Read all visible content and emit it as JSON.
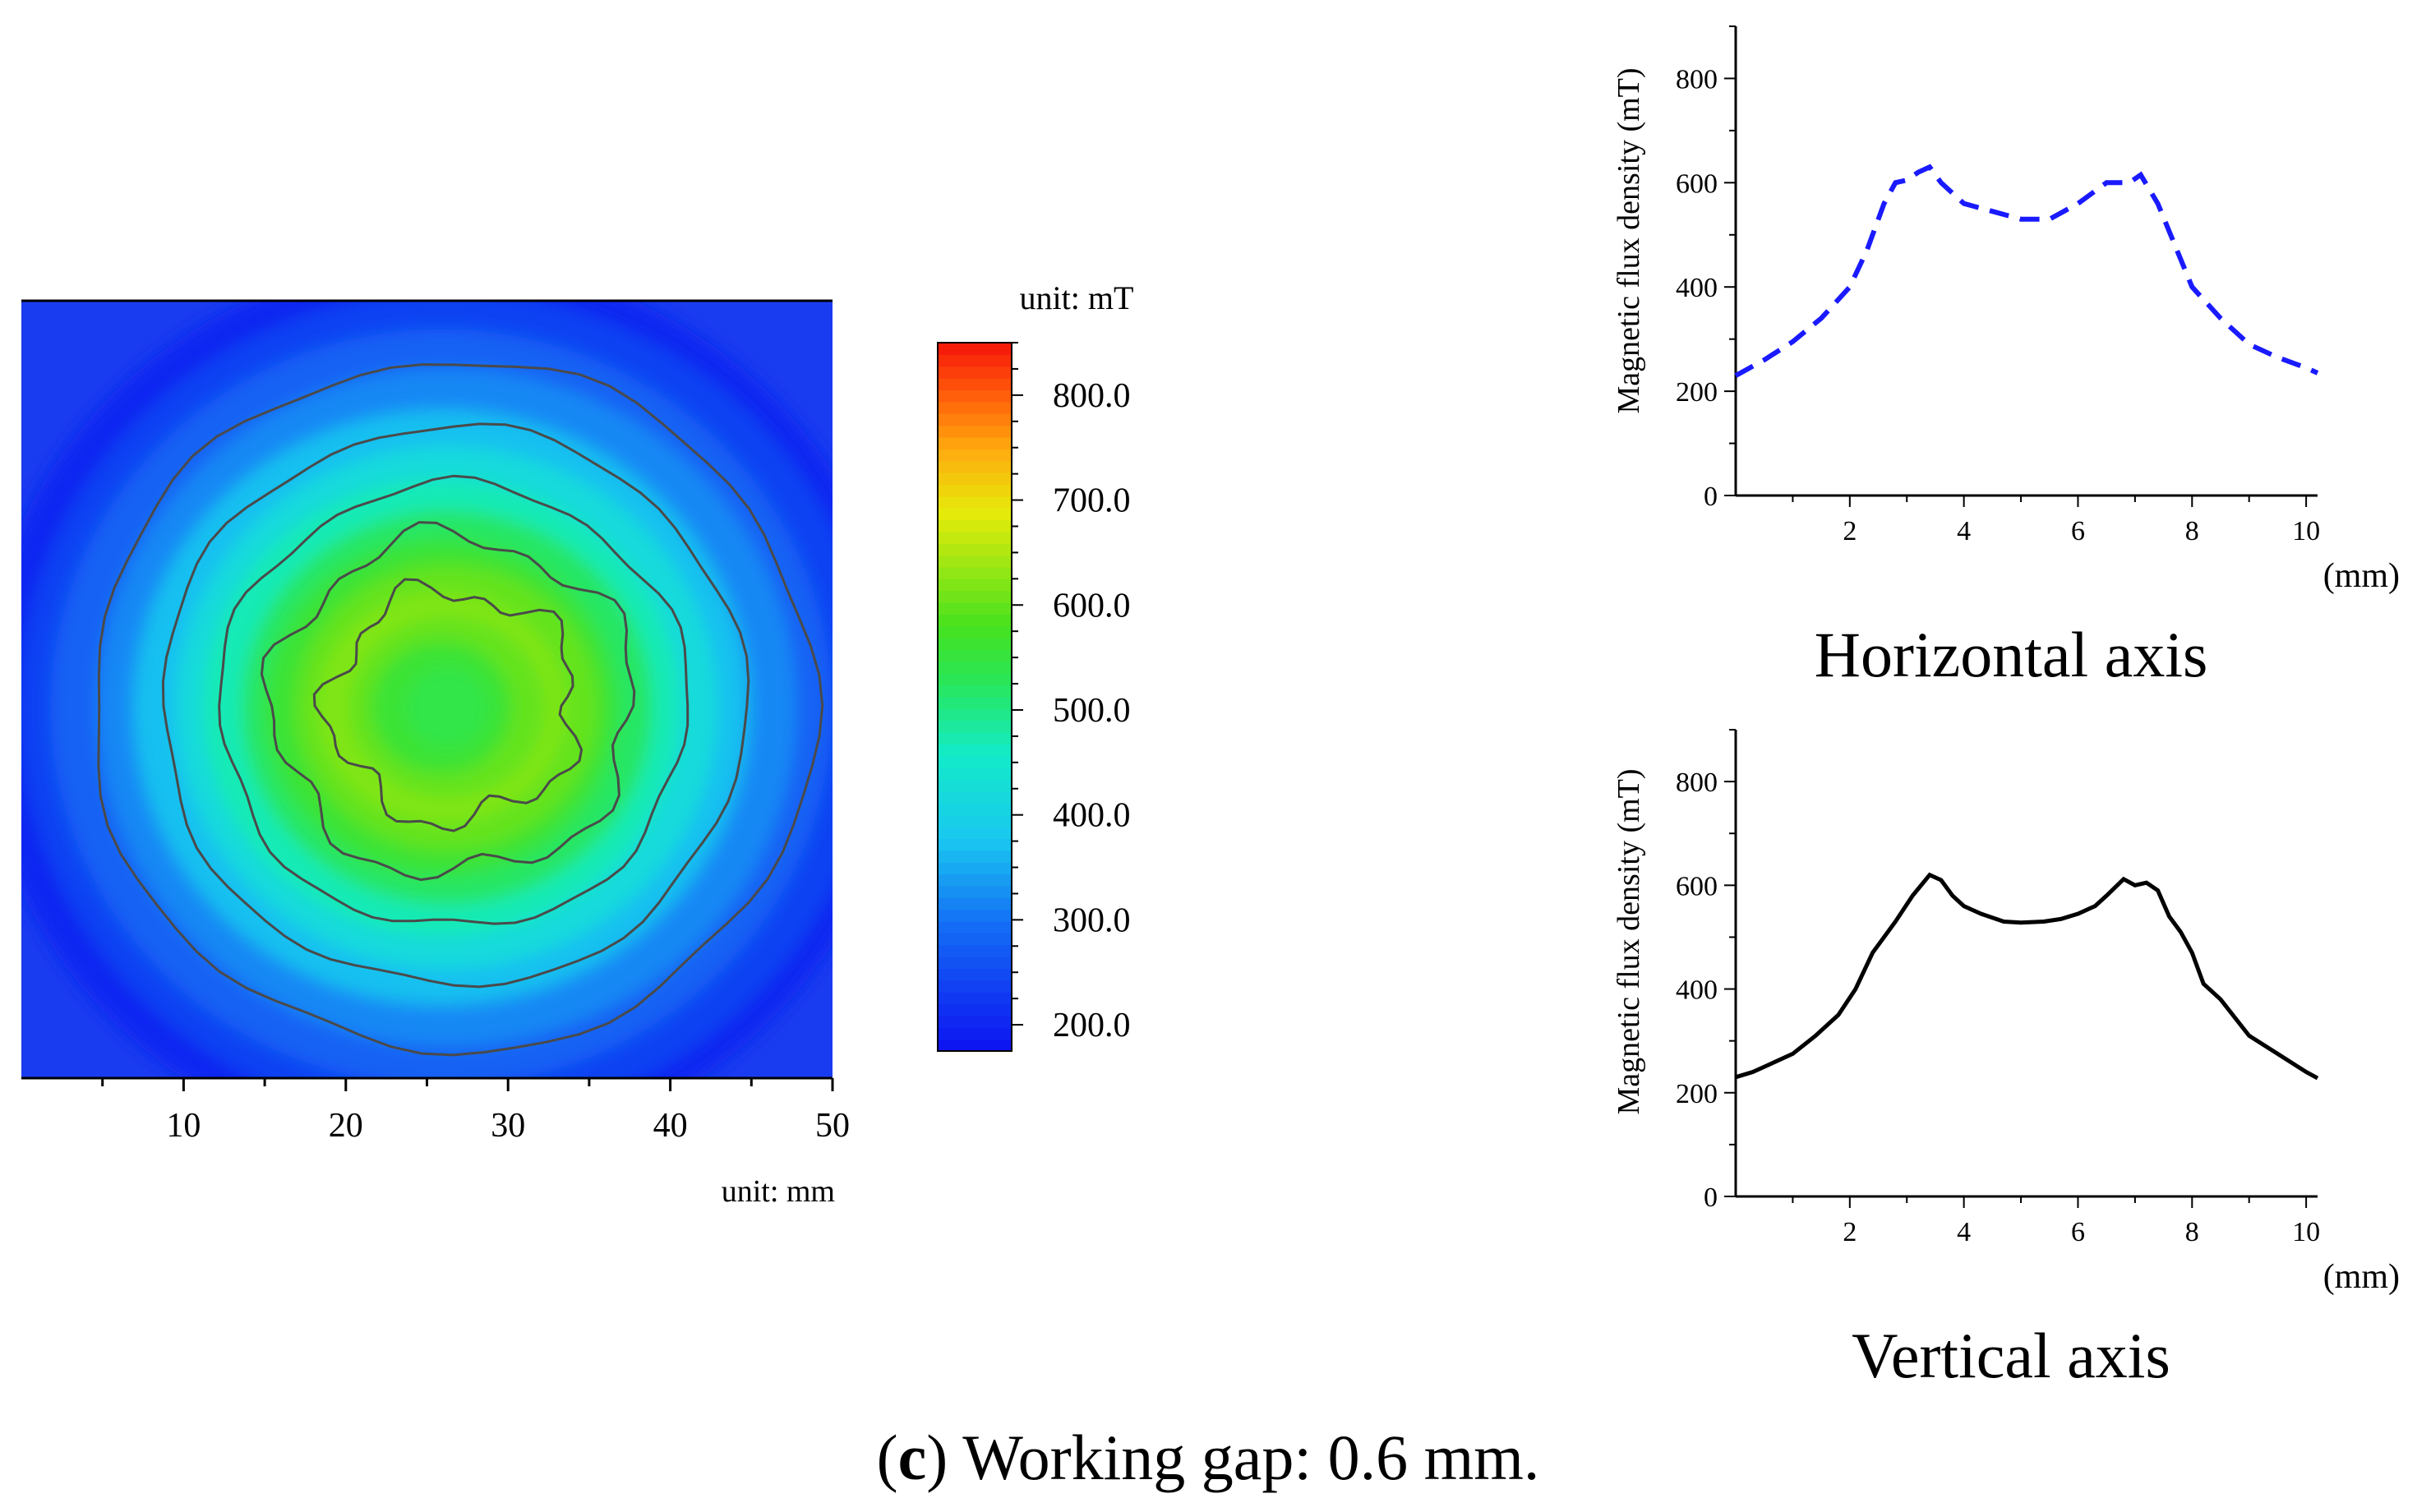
{
  "figure": {
    "caption_letter": "c",
    "caption_text": " Working gap: 0.6 mm."
  },
  "chart_data": [
    {
      "type": "heatmap",
      "title": "",
      "colorbar_title": "unit: mT",
      "colorbar_ticks": [
        "800.0",
        "700.0",
        "600.0",
        "500.0",
        "400.0",
        "300.0",
        "200.0"
      ],
      "colorbar_tick_values": [
        800,
        700,
        600,
        500,
        400,
        300,
        200
      ],
      "colorbar_range": [
        175,
        850
      ],
      "x_unit_label": "unit: mm",
      "xlim": [
        0,
        50
      ],
      "x_ticks": [
        "10",
        "20",
        "30",
        "40",
        "50"
      ],
      "x_tick_values": [
        10,
        20,
        30,
        40,
        50
      ],
      "ylim": [
        0,
        50
      ],
      "peak_value": 650,
      "background_value": 180,
      "contour_levels": [
        300,
        400,
        500,
        600
      ]
    },
    {
      "type": "line",
      "title": "Horizontal axis",
      "ylabel": "Magnetic flux density (mT)",
      "xlabel": "(mm)",
      "xlim": [
        0,
        10.2
      ],
      "ylim": [
        0,
        900
      ],
      "x_ticks": [
        "2",
        "4",
        "6",
        "8",
        "10"
      ],
      "x_tick_values": [
        2,
        4,
        6,
        8,
        10
      ],
      "y_ticks": [
        "0",
        "200",
        "400",
        "600",
        "800"
      ],
      "y_tick_values": [
        0,
        200,
        400,
        600,
        800
      ],
      "line_style": "dashed",
      "color": "#1a1aff",
      "x": [
        0,
        0.5,
        1.0,
        1.5,
        2.0,
        2.3,
        2.6,
        2.8,
        3.0,
        3.2,
        3.4,
        3.6,
        4.0,
        4.5,
        5.0,
        5.5,
        6.0,
        6.5,
        6.9,
        7.1,
        7.4,
        8.0,
        8.5,
        9.0,
        9.5,
        10.0,
        10.2
      ],
      "y": [
        230,
        260,
        295,
        340,
        400,
        470,
        560,
        600,
        605,
        620,
        630,
        600,
        560,
        545,
        530,
        530,
        560,
        600,
        600,
        615,
        560,
        400,
        340,
        290,
        265,
        245,
        235
      ]
    },
    {
      "type": "line",
      "title": "Vertical axis",
      "ylabel": "Magnetic flux density (mT)",
      "xlabel": "(mm)",
      "xlim": [
        0,
        10.2
      ],
      "ylim": [
        0,
        900
      ],
      "x_ticks": [
        "2",
        "4",
        "6",
        "8",
        "10"
      ],
      "x_tick_values": [
        2,
        4,
        6,
        8,
        10
      ],
      "y_ticks": [
        "0",
        "200",
        "400",
        "600",
        "800"
      ],
      "y_tick_values": [
        0,
        200,
        400,
        600,
        800
      ],
      "line_style": "solid",
      "color": "#000000",
      "x": [
        0,
        0.3,
        0.6,
        1.0,
        1.4,
        1.8,
        2.1,
        2.4,
        2.8,
        3.1,
        3.4,
        3.6,
        3.8,
        4.0,
        4.3,
        4.7,
        5.0,
        5.4,
        5.7,
        6.0,
        6.3,
        6.5,
        6.8,
        7.0,
        7.2,
        7.4,
        7.6,
        7.8,
        8.0,
        8.2,
        8.5,
        9.0,
        9.5,
        10.0,
        10.2
      ],
      "y": [
        230,
        240,
        255,
        275,
        310,
        350,
        400,
        470,
        530,
        580,
        620,
        610,
        580,
        560,
        545,
        530,
        528,
        530,
        535,
        545,
        560,
        580,
        612,
        600,
        605,
        590,
        540,
        510,
        470,
        410,
        380,
        310,
        275,
        240,
        228
      ]
    }
  ]
}
